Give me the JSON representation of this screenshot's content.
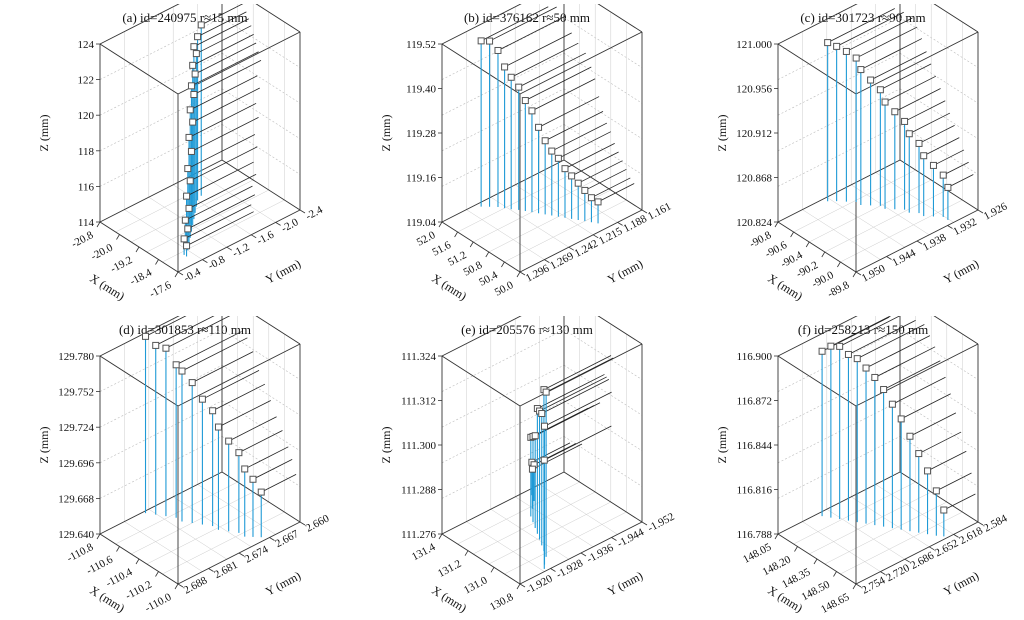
{
  "chart_data": [
    {
      "type": "scatter",
      "title": "(a) id=240975  r≈15 mm",
      "xlabel": "X (mm)",
      "ylabel": "Y (mm)",
      "zlabel": "Z (mm)",
      "x_ticks": [
        "-20.8",
        "-20.0",
        "-19.2",
        "-18.4",
        "-17.6"
      ],
      "y_ticks": [
        "-2.4",
        "-2.0",
        "-1.6",
        "-1.2",
        "-0.8",
        "-0.4"
      ],
      "z_ticks": [
        "124",
        "122",
        "120",
        "118",
        "116",
        "114"
      ],
      "xlim": [
        -20.8,
        -17.6
      ],
      "ylim": [
        -2.4,
        -0.4
      ],
      "zlim": [
        114,
        124
      ],
      "colors": {
        "drop_lines": "#1f9ad6",
        "normals": "#222222",
        "markers": "#555555"
      },
      "points": [
        {
          "x": -19.9,
          "y": -1.1,
          "z": 123.6
        },
        {
          "x": -19.8,
          "y": -1.2,
          "z": 123.2
        },
        {
          "x": -19.7,
          "y": -1.3,
          "z": 122.9
        },
        {
          "x": -19.6,
          "y": -1.3,
          "z": 122.6
        },
        {
          "x": -19.5,
          "y": -1.4,
          "z": 122.2
        },
        {
          "x": -19.4,
          "y": -1.4,
          "z": 121.8
        },
        {
          "x": -19.3,
          "y": -1.5,
          "z": 121.4
        },
        {
          "x": -19.2,
          "y": -1.5,
          "z": 121.0
        },
        {
          "x": -19.1,
          "y": -1.6,
          "z": 120.4
        },
        {
          "x": -19.0,
          "y": -1.6,
          "z": 119.8
        },
        {
          "x": -18.9,
          "y": -1.7,
          "z": 119.2
        },
        {
          "x": -18.8,
          "y": -1.7,
          "z": 118.5
        },
        {
          "x": -18.7,
          "y": -1.8,
          "z": 117.8
        },
        {
          "x": -18.6,
          "y": -1.8,
          "z": 117.2
        },
        {
          "x": -18.5,
          "y": -1.9,
          "z": 116.6
        },
        {
          "x": -18.4,
          "y": -1.9,
          "z": 116.0
        },
        {
          "x": -18.3,
          "y": -2.0,
          "z": 115.6
        },
        {
          "x": -18.2,
          "y": -2.0,
          "z": 115.2
        },
        {
          "x": -18.1,
          "y": -2.1,
          "z": 114.9
        },
        {
          "x": -18.0,
          "y": -2.1,
          "z": 114.6
        }
      ]
    },
    {
      "type": "scatter",
      "title": "(b) id=376162  r≈50 mm",
      "xlabel": "X (mm)",
      "ylabel": "Y (mm)",
      "zlabel": "Z (mm)",
      "x_ticks": [
        "52.0",
        "51.6",
        "51.2",
        "50.8",
        "50.4",
        "50.0"
      ],
      "y_ticks": [
        "1.161",
        "1.188",
        "1.215",
        "1.242",
        "1.269",
        "1.296"
      ],
      "z_ticks": [
        "119.52",
        "119.40",
        "119.28",
        "119.16",
        "119.04"
      ],
      "xlim": [
        52.0,
        50.0
      ],
      "ylim": [
        1.161,
        1.296
      ],
      "zlim": [
        118.98,
        119.56
      ],
      "colors": {
        "drop_lines": "#1f9ad6",
        "normals": "#222222",
        "markers": "#555555"
      },
      "points": [
        {
          "x": 51.9,
          "y": 1.2,
          "z": 119.52
        },
        {
          "x": 51.8,
          "y": 1.205,
          "z": 119.52
        },
        {
          "x": 51.7,
          "y": 1.21,
          "z": 119.49
        },
        {
          "x": 51.6,
          "y": 1.213,
          "z": 119.44
        },
        {
          "x": 51.5,
          "y": 1.216,
          "z": 119.41
        },
        {
          "x": 51.4,
          "y": 1.22,
          "z": 119.38
        },
        {
          "x": 51.3,
          "y": 1.223,
          "z": 119.34
        },
        {
          "x": 51.2,
          "y": 1.226,
          "z": 119.31
        },
        {
          "x": 51.1,
          "y": 1.229,
          "z": 119.26
        },
        {
          "x": 51.0,
          "y": 1.232,
          "z": 119.22
        },
        {
          "x": 50.9,
          "y": 1.235,
          "z": 119.19
        },
        {
          "x": 50.8,
          "y": 1.238,
          "z": 119.17
        },
        {
          "x": 50.7,
          "y": 1.241,
          "z": 119.14
        },
        {
          "x": 50.6,
          "y": 1.244,
          "z": 119.12
        },
        {
          "x": 50.5,
          "y": 1.247,
          "z": 119.1
        },
        {
          "x": 50.4,
          "y": 1.25,
          "z": 119.08
        },
        {
          "x": 50.3,
          "y": 1.253,
          "z": 119.06
        },
        {
          "x": 50.2,
          "y": 1.256,
          "z": 119.05
        }
      ]
    },
    {
      "type": "scatter",
      "title": "(c) id=301723  r≈90 mm",
      "xlabel": "X (mm)",
      "ylabel": "Y (mm)",
      "zlabel": "Z (mm)",
      "x_ticks": [
        "-90.8",
        "-90.6",
        "-90.4",
        "-90.2",
        "-90.0",
        "-89.8"
      ],
      "y_ticks": [
        "1.926",
        "1.932",
        "1.938",
        "1.944",
        "1.950"
      ],
      "z_ticks": [
        "121.000",
        "120.956",
        "120.912",
        "120.868",
        "120.824"
      ],
      "xlim": [
        -90.8,
        -89.8
      ],
      "ylim": [
        1.926,
        1.95
      ],
      "zlim": [
        120.8,
        121.03
      ],
      "colors": {
        "drop_lines": "#1f9ad6",
        "normals": "#222222",
        "markers": "#555555"
      },
      "points": [
        {
          "x": -90.75,
          "y": 1.935,
          "z": 121.005
        },
        {
          "x": -90.7,
          "y": 1.936,
          "z": 121.0
        },
        {
          "x": -90.64,
          "y": 1.937,
          "z": 120.994
        },
        {
          "x": -90.58,
          "y": 1.938,
          "z": 120.986
        },
        {
          "x": -90.52,
          "y": 1.938,
          "z": 120.975
        },
        {
          "x": -90.46,
          "y": 1.939,
          "z": 120.962
        },
        {
          "x": -90.4,
          "y": 1.94,
          "z": 120.95
        },
        {
          "x": -90.34,
          "y": 1.94,
          "z": 120.938
        },
        {
          "x": -90.28,
          "y": 1.941,
          "z": 120.926
        },
        {
          "x": -90.22,
          "y": 1.942,
          "z": 120.914
        },
        {
          "x": -90.16,
          "y": 1.942,
          "z": 120.902
        },
        {
          "x": -90.1,
          "y": 1.943,
          "z": 120.89
        },
        {
          "x": -90.04,
          "y": 1.943,
          "z": 120.878
        },
        {
          "x": -89.98,
          "y": 1.944,
          "z": 120.866
        },
        {
          "x": -89.92,
          "y": 1.945,
          "z": 120.854
        },
        {
          "x": -89.86,
          "y": 1.945,
          "z": 120.842
        }
      ]
    },
    {
      "type": "scatter",
      "title": "(d) id=301853  r≈110 mm",
      "xlabel": "X (mm)",
      "ylabel": "Y (mm)",
      "zlabel": "Z (mm)",
      "x_ticks": [
        "-110.8",
        "-110.6",
        "-110.4",
        "-110.2",
        "-110.0"
      ],
      "y_ticks": [
        "2.660",
        "2.667",
        "2.674",
        "2.681",
        "2.688"
      ],
      "z_ticks": [
        "129.780",
        "129.752",
        "129.724",
        "129.696",
        "129.668",
        "129.640"
      ],
      "xlim": [
        -110.8,
        -110.0
      ],
      "ylim": [
        2.66,
        2.688
      ],
      "zlim": [
        129.64,
        129.782
      ],
      "colors": {
        "drop_lines": "#1f9ad6",
        "normals": "#222222",
        "markers": "#555555"
      },
      "points": [
        {
          "x": -110.78,
          "y": 2.67,
          "z": 129.781
        },
        {
          "x": -110.72,
          "y": 2.671,
          "z": 129.775
        },
        {
          "x": -110.66,
          "y": 2.672,
          "z": 129.774
        },
        {
          "x": -110.6,
          "y": 2.673,
          "z": 129.762
        },
        {
          "x": -110.54,
          "y": 2.673,
          "z": 129.76
        },
        {
          "x": -110.48,
          "y": 2.674,
          "z": 129.752
        },
        {
          "x": -110.42,
          "y": 2.675,
          "z": 129.74
        },
        {
          "x": -110.36,
          "y": 2.676,
          "z": 129.732
        },
        {
          "x": -110.3,
          "y": 2.676,
          "z": 129.722
        },
        {
          "x": -110.24,
          "y": 2.677,
          "z": 129.712
        },
        {
          "x": -110.18,
          "y": 2.678,
          "z": 129.704
        },
        {
          "x": -110.12,
          "y": 2.678,
          "z": 129.694
        },
        {
          "x": -110.08,
          "y": 2.679,
          "z": 129.686
        },
        {
          "x": -110.04,
          "y": 2.68,
          "z": 129.676
        }
      ]
    },
    {
      "type": "scatter",
      "title": "(e) id=205576  r≈130 mm",
      "xlabel": "X (mm)",
      "ylabel": "Y (mm)",
      "zlabel": "Z (mm)",
      "x_ticks": [
        "131.4",
        "131.2",
        "131.0",
        "130.8"
      ],
      "y_ticks": [
        "-1.952",
        "-1.944",
        "-1.936",
        "-1.928",
        "-1.920"
      ],
      "z_ticks": [
        "111.324",
        "111.312",
        "111.300",
        "111.288",
        "111.276"
      ],
      "xlim": [
        131.45,
        130.8
      ],
      "ylim": [
        -1.952,
        -1.92
      ],
      "zlim": [
        111.272,
        111.326
      ],
      "colors": {
        "drop_lines": "#1f9ad6",
        "normals": "#222222",
        "markers": "#555555"
      },
      "points": [
        {
          "x": 131.4,
          "y": -1.93,
          "z": 111.282
        },
        {
          "x": 131.35,
          "y": -1.931,
          "z": 111.283
        },
        {
          "x": 131.3,
          "y": -1.933,
          "z": 111.284
        },
        {
          "x": 131.25,
          "y": -1.935,
          "z": 111.296
        },
        {
          "x": 131.2,
          "y": -1.936,
          "z": 111.298
        },
        {
          "x": 131.15,
          "y": -1.937,
          "z": 111.3
        },
        {
          "x": 131.1,
          "y": -1.938,
          "z": 111.31
        },
        {
          "x": 131.05,
          "y": -1.939,
          "z": 111.311
        },
        {
          "x": 131.0,
          "y": -1.94,
          "z": 111.312
        },
        {
          "x": 130.95,
          "y": -1.941,
          "z": 111.321
        },
        {
          "x": 130.9,
          "y": -1.942,
          "z": 111.322
        },
        {
          "x": 130.85,
          "y": -1.944,
          "z": 111.314
        },
        {
          "x": 130.82,
          "y": -1.945,
          "z": 111.305
        }
      ]
    },
    {
      "type": "scatter",
      "title": "(f) id=258213  r≈150 mm",
      "xlabel": "X (mm)",
      "ylabel": "Y (mm)",
      "zlabel": "Z (mm)",
      "x_ticks": [
        "148.05",
        "148.20",
        "148.35",
        "148.50",
        "148.65"
      ],
      "y_ticks": [
        "2.584",
        "2.618",
        "2.652",
        "2.686",
        "2.720",
        "2.754"
      ],
      "z_ticks": [
        "116.900",
        "116.872",
        "116.844",
        "116.816",
        "116.788"
      ],
      "xlim": [
        148.05,
        148.65
      ],
      "ylim": [
        2.584,
        2.754
      ],
      "zlim": [
        116.78,
        116.915
      ],
      "colors": {
        "drop_lines": "#1f9ad6",
        "normals": "#222222",
        "markers": "#555555"
      },
      "points": [
        {
          "x": 148.08,
          "y": 2.64,
          "z": 116.905
        },
        {
          "x": 148.12,
          "y": 2.645,
          "z": 116.91
        },
        {
          "x": 148.16,
          "y": 2.65,
          "z": 116.911
        },
        {
          "x": 148.2,
          "y": 2.655,
          "z": 116.906
        },
        {
          "x": 148.24,
          "y": 2.66,
          "z": 116.904
        },
        {
          "x": 148.28,
          "y": 2.665,
          "z": 116.898
        },
        {
          "x": 148.32,
          "y": 2.67,
          "z": 116.892
        },
        {
          "x": 148.36,
          "y": 2.675,
          "z": 116.884
        },
        {
          "x": 148.4,
          "y": 2.68,
          "z": 116.874
        },
        {
          "x": 148.44,
          "y": 2.685,
          "z": 116.864
        },
        {
          "x": 148.48,
          "y": 2.69,
          "z": 116.852
        },
        {
          "x": 148.52,
          "y": 2.695,
          "z": 116.84
        },
        {
          "x": 148.56,
          "y": 2.7,
          "z": 116.828
        },
        {
          "x": 148.6,
          "y": 2.705,
          "z": 116.814
        },
        {
          "x": 148.63,
          "y": 2.71,
          "z": 116.8
        }
      ]
    }
  ]
}
